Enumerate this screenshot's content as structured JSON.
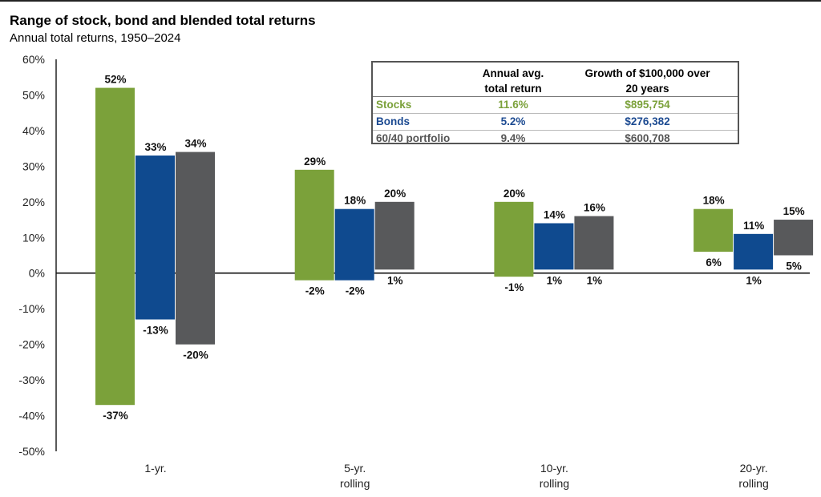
{
  "title": "Range of stock, bond and blended total returns",
  "subtitle": "Annual total returns, 1950–2024",
  "colors": {
    "stocks": "#7ba13a",
    "bonds": "#0f4a8f",
    "blend": "#58595b"
  },
  "table": {
    "headers": [
      "",
      "Annual avg.\ntotal return",
      "Growth of $100,000 over\n20 years"
    ],
    "header_col1_line1": "Annual avg.",
    "header_col1_line2": "total return",
    "header_col2_line1": "Growth of $100,000 over",
    "header_col2_line2": "20 years",
    "rows": [
      {
        "name": "Stocks",
        "avg": "11.6%",
        "growth": "$895,754",
        "color": "#7ba13a"
      },
      {
        "name": "Bonds",
        "avg": "5.2%",
        "growth": "$276,382",
        "color": "#1c4a91"
      },
      {
        "name": "60/40 portfolio",
        "avg": "9.4%",
        "growth": "$600,708",
        "color": "#555555"
      }
    ]
  },
  "chart_data": {
    "type": "bar",
    "subtype": "floating-range",
    "title": "Range of stock, bond and blended total returns",
    "subtitle": "Annual total returns, 1950–2024",
    "categories": [
      "1-yr.",
      "5-yr.\nrolling",
      "10-yr.\nrolling",
      "20-yr.\nrolling"
    ],
    "category_lines": [
      [
        "1-yr."
      ],
      [
        "5-yr.",
        "rolling"
      ],
      [
        "10-yr.",
        "rolling"
      ],
      [
        "20-yr.",
        "rolling"
      ]
    ],
    "ylim": [
      -50,
      60
    ],
    "yticks": [
      -50,
      -40,
      -30,
      -20,
      -10,
      0,
      10,
      20,
      30,
      40,
      50,
      60
    ],
    "ytick_labels": [
      "-50%",
      "-40%",
      "-30%",
      "-20%",
      "-10%",
      "0%",
      "10%",
      "20%",
      "30%",
      "40%",
      "50%",
      "60%"
    ],
    "series": [
      {
        "name": "Stocks",
        "color": "#7ba13a",
        "max": [
          52,
          29,
          20,
          18
        ],
        "min": [
          -37,
          -2,
          -1,
          6
        ],
        "max_labels": [
          "52%",
          "29%",
          "20%",
          "18%"
        ],
        "min_labels": [
          "-37%",
          "-2%",
          "-1%",
          "6%"
        ]
      },
      {
        "name": "Bonds",
        "color": "#0f4a8f",
        "max": [
          33,
          18,
          14,
          11
        ],
        "min": [
          -13,
          -2,
          1,
          1
        ],
        "max_labels": [
          "33%",
          "18%",
          "14%",
          "11%"
        ],
        "min_labels": [
          "-13%",
          "-2%",
          "1%",
          "1%"
        ]
      },
      {
        "name": "60/40 portfolio",
        "color": "#58595b",
        "max": [
          34,
          20,
          16,
          15
        ],
        "min": [
          -20,
          1,
          1,
          5
        ],
        "max_labels": [
          "34%",
          "20%",
          "16%",
          "15%"
        ],
        "min_labels": [
          "-20%",
          "1%",
          "1%",
          "5%"
        ]
      }
    ],
    "grid": false,
    "legend": "top-right table"
  }
}
